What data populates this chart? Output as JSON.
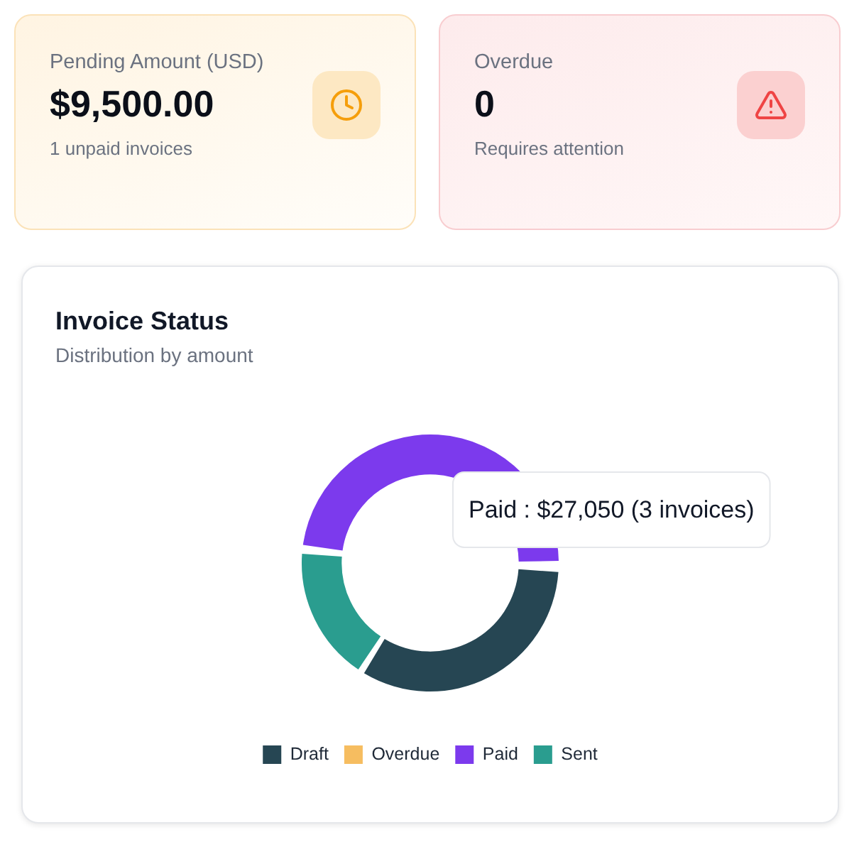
{
  "chart_data": [
    {
      "type": "other",
      "title": "Pending Amount (USD)",
      "annotations": [
        "$9,500.00",
        "1 unpaid invoices"
      ]
    },
    {
      "type": "other",
      "title": "Overdue",
      "annotations": [
        "0",
        "Requires attention"
      ]
    },
    {
      "type": "donut",
      "title": "Invoice Status",
      "subtitle": "Distribution by amount",
      "categories": [
        "Draft",
        "Overdue",
        "Paid",
        "Sent"
      ],
      "values": [
        18500,
        0,
        27050,
        9500
      ],
      "colors": [
        "#264653",
        "#f6bd60",
        "#7c3aed",
        "#2a9d8f"
      ],
      "value_labels": [
        null,
        null,
        "Paid : $27,050 (3 invoices)",
        null
      ],
      "legend": "bottom"
    }
  ]
}
